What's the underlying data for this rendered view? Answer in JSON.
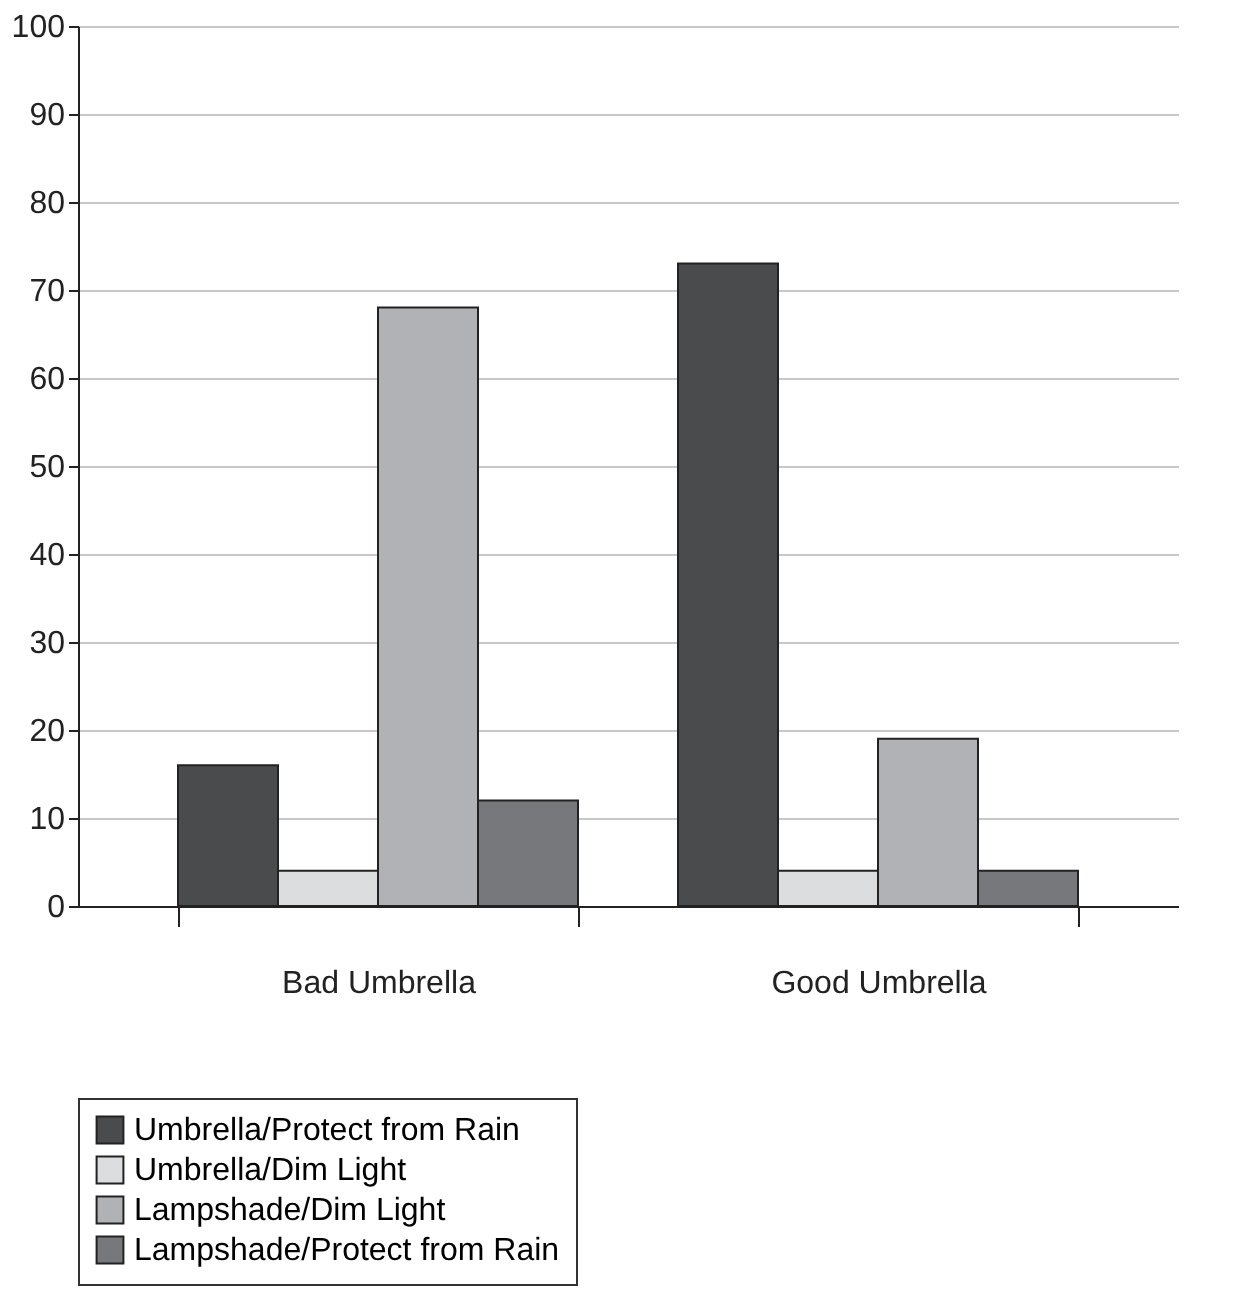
{
  "chart_data": {
    "type": "bar",
    "categories": [
      "Bad Umbrella",
      "Good Umbrella"
    ],
    "series": [
      {
        "name": "Umbrella/Protect from Rain",
        "color": "#4a4b4d",
        "values": [
          16,
          73
        ]
      },
      {
        "name": "Umbrella/Dim Light",
        "color": "#dcdddf",
        "values": [
          4,
          4
        ]
      },
      {
        "name": "Lampshade/Dim Light",
        "color": "#b1b2b5",
        "values": [
          68,
          19
        ]
      },
      {
        "name": "Lampshade/Protect from Rain",
        "color": "#77787c",
        "values": [
          12,
          4
        ]
      }
    ],
    "ylim": [
      0,
      100
    ],
    "yticks": [
      0,
      10,
      20,
      30,
      40,
      50,
      60,
      70,
      80,
      90,
      100
    ],
    "grid": "y",
    "legend": "bottom"
  }
}
